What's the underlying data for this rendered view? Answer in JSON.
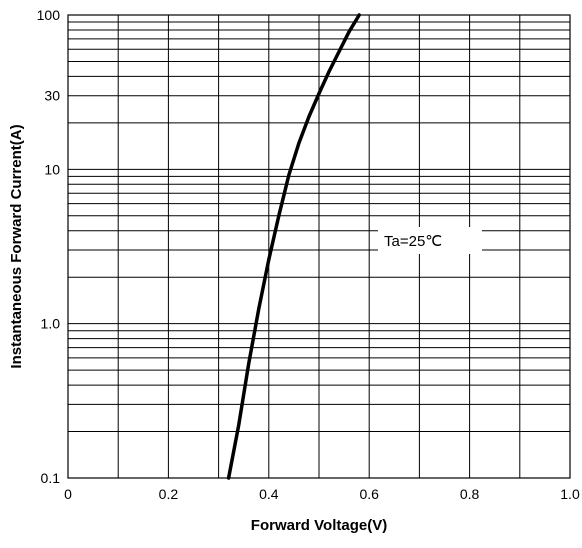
{
  "chart_data": {
    "type": "line",
    "xlabel": "Forward Voltage(V)",
    "ylabel": "Instantaneous Forward Current(A)",
    "xscale": "linear",
    "yscale": "log",
    "xlim": [
      0,
      1.0
    ],
    "ylim": [
      0.1,
      100
    ],
    "x_ticks": [
      0,
      0.2,
      0.4,
      0.6,
      0.8,
      1.0
    ],
    "x_tick_labels": [
      "0",
      "0.2",
      "0.4",
      "0.6",
      "0.8",
      "1.0"
    ],
    "y_ticks": [
      0.1,
      1,
      10,
      30,
      100
    ],
    "y_tick_labels": [
      "0.1",
      "1.0",
      "10",
      "30",
      "100"
    ],
    "grid": true,
    "annotation": "Ta=25℃",
    "series": [
      {
        "x": [
          0.32,
          0.34,
          0.36,
          0.38,
          0.4,
          0.42,
          0.44,
          0.46,
          0.48,
          0.5,
          0.52,
          0.54,
          0.56,
          0.58
        ],
        "y": [
          0.1,
          0.22,
          0.55,
          1.25,
          2.6,
          5.0,
          9.2,
          14.8,
          22.0,
          31.0,
          43.0,
          58.0,
          78.0,
          100.0
        ]
      }
    ]
  }
}
